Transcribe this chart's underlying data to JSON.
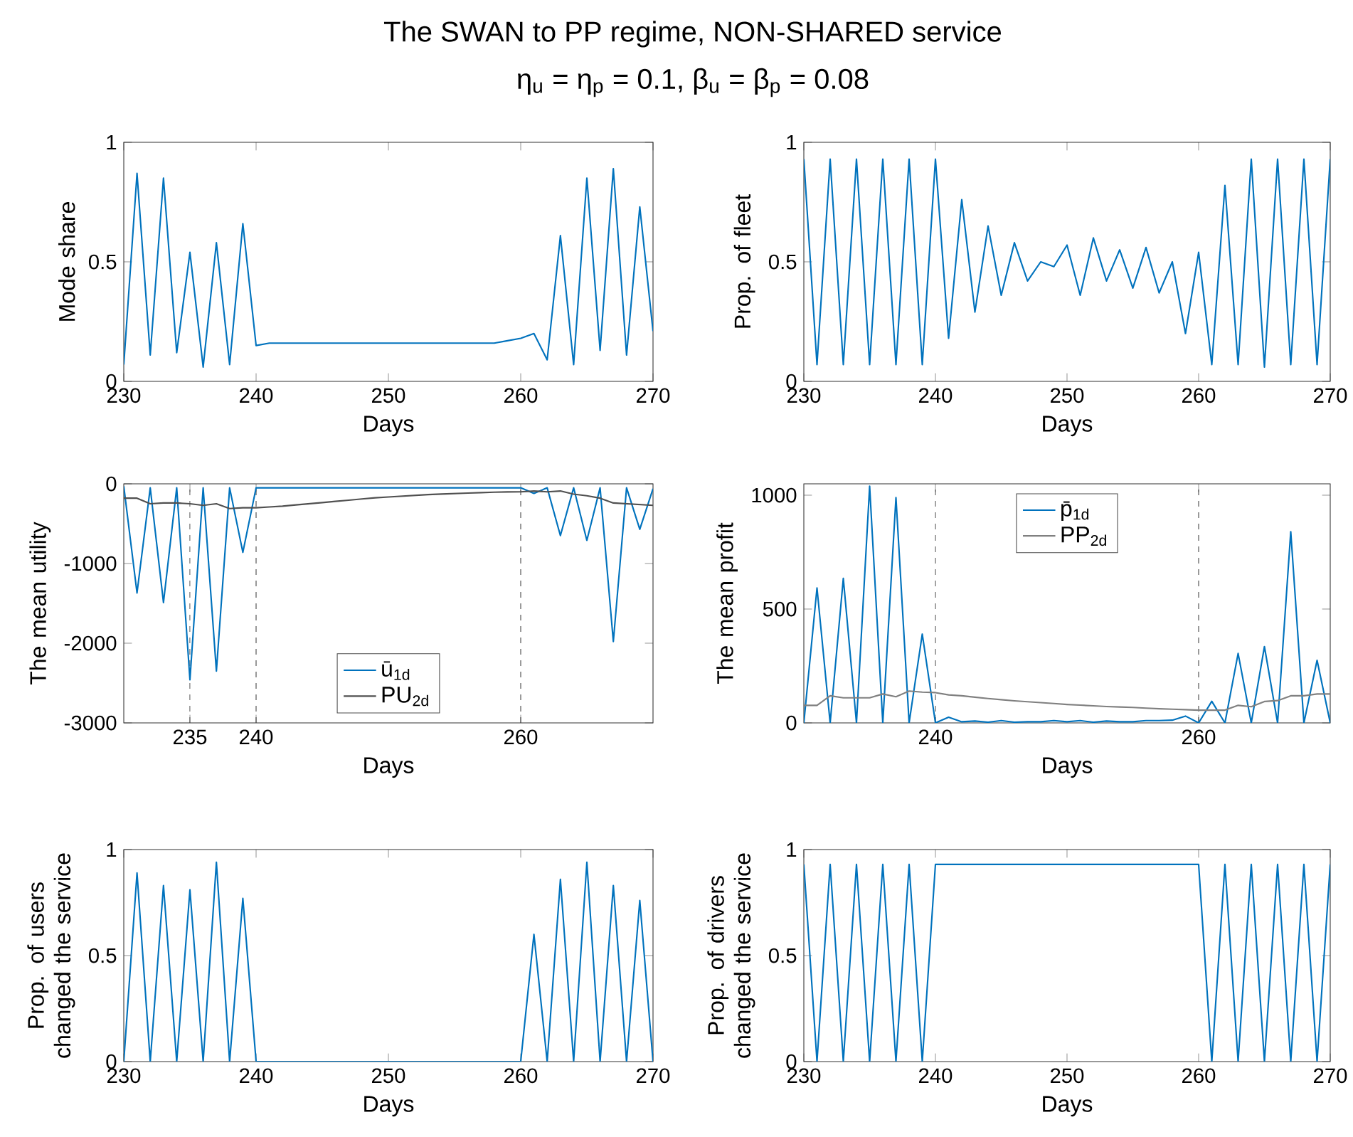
{
  "chart_data": [
    {
      "type": "line",
      "title": "The SWAN to PP regime, NON-SHARED service",
      "subtitle": "η$_{u}$ = η$_{p}$ = 0.1, β$_{u}$ = β$_{p}$ = 0.08",
      "xlabel": "Days",
      "ylabel": "Mode share",
      "xlim": [
        230,
        270
      ],
      "ylim": [
        0,
        1
      ],
      "xticks": [
        230,
        240,
        250,
        260,
        270
      ],
      "yticks": [
        0,
        0.5,
        1
      ],
      "marker": "none",
      "line_style": "solid",
      "x": [
        230,
        231,
        232,
        233,
        234,
        235,
        236,
        237,
        238,
        239,
        240,
        241,
        242,
        243,
        244,
        245,
        246,
        247,
        248,
        249,
        250,
        251,
        252,
        253,
        254,
        255,
        256,
        257,
        258,
        259,
        260,
        261,
        262,
        263,
        264,
        265,
        266,
        267,
        268,
        269,
        270
      ],
      "series": [
        {
          "color": "#0072bd",
          "values": [
            0.07,
            0.87,
            0.11,
            0.85,
            0.12,
            0.54,
            0.06,
            0.58,
            0.07,
            0.66,
            0.15,
            0.16,
            0.16,
            0.16,
            0.16,
            0.16,
            0.16,
            0.16,
            0.16,
            0.16,
            0.16,
            0.16,
            0.16,
            0.16,
            0.16,
            0.16,
            0.16,
            0.16,
            0.16,
            0.17,
            0.18,
            0.2,
            0.09,
            0.61,
            0.07,
            0.85,
            0.13,
            0.89,
            0.11,
            0.73,
            0.21
          ]
        }
      ]
    },
    {
      "type": "line",
      "xlabel": "Days",
      "ylabel": "Prop. of fleet",
      "xlim": [
        230,
        270
      ],
      "ylim": [
        0,
        1
      ],
      "xticks": [
        230,
        240,
        250,
        260,
        270
      ],
      "yticks": [
        0,
        0.5,
        1
      ],
      "marker": "none",
      "line_style": "solid",
      "x": [
        230,
        231,
        232,
        233,
        234,
        235,
        236,
        237,
        238,
        239,
        240,
        241,
        242,
        243,
        244,
        245,
        246,
        247,
        248,
        249,
        250,
        251,
        252,
        253,
        254,
        255,
        256,
        257,
        258,
        259,
        260,
        261,
        262,
        263,
        264,
        265,
        266,
        267,
        268,
        269,
        270
      ],
      "series": [
        {
          "color": "#0072bd",
          "values": [
            0.93,
            0.07,
            0.93,
            0.07,
            0.93,
            0.07,
            0.93,
            0.07,
            0.93,
            0.07,
            0.93,
            0.18,
            0.76,
            0.29,
            0.65,
            0.36,
            0.58,
            0.42,
            0.5,
            0.48,
            0.57,
            0.36,
            0.6,
            0.42,
            0.55,
            0.39,
            0.56,
            0.37,
            0.5,
            0.2,
            0.54,
            0.07,
            0.82,
            0.07,
            0.93,
            0.06,
            0.93,
            0.07,
            0.93,
            0.07,
            0.93
          ]
        }
      ]
    },
    {
      "type": "line",
      "xlabel": "Days",
      "ylabel": "The mean utility",
      "xlim": [
        230,
        270
      ],
      "ylim": [
        -3000,
        0
      ],
      "xticks": [
        235,
        240,
        260
      ],
      "yticks": [
        -3000,
        -2000,
        -1000,
        0
      ],
      "marker": "none",
      "line_style": "solid",
      "legend": "bottom",
      "x": [
        230,
        231,
        232,
        233,
        234,
        235,
        236,
        237,
        238,
        239,
        240,
        241,
        242,
        243,
        244,
        245,
        246,
        247,
        248,
        249,
        250,
        251,
        252,
        253,
        254,
        255,
        256,
        257,
        258,
        259,
        260,
        261,
        262,
        263,
        264,
        265,
        266,
        267,
        268,
        269,
        270
      ],
      "series": [
        {
          "name": "ū$_{1d}$",
          "color": "#0072bd",
          "values": [
            -30,
            -1370,
            -50,
            -1490,
            -50,
            -2460,
            -50,
            -2350,
            -50,
            -860,
            -50,
            -50,
            -50,
            -50,
            -50,
            -50,
            -50,
            -50,
            -50,
            -50,
            -50,
            -50,
            -50,
            -50,
            -50,
            -50,
            -50,
            -50,
            -50,
            -50,
            -50,
            -120,
            -50,
            -650,
            -50,
            -710,
            -50,
            -1980,
            -50,
            -570,
            -60
          ]
        },
        {
          "name": "PU$_{2d}$",
          "color": "#505050",
          "values": [
            -180,
            -180,
            -250,
            -240,
            -240,
            -250,
            -270,
            -250,
            -310,
            -300,
            -300,
            -290,
            -280,
            -265,
            -250,
            -235,
            -220,
            -205,
            -190,
            -175,
            -165,
            -155,
            -145,
            -135,
            -128,
            -122,
            -116,
            -110,
            -105,
            -102,
            -100,
            -90,
            -100,
            -90,
            -130,
            -150,
            -180,
            -240,
            -250,
            -260,
            -270
          ]
        }
      ],
      "ref_lines": [
        {
          "axis": "x",
          "value": 235,
          "color": "#404040",
          "line_style": "dashed"
        },
        {
          "axis": "x",
          "value": 240,
          "color": "#404040",
          "line_style": "dashed"
        },
        {
          "axis": "x",
          "value": 260,
          "color": "#404040",
          "line_style": "dashed"
        }
      ]
    },
    {
      "type": "line",
      "xlabel": "Days",
      "ylabel": "The mean profit",
      "xlim": [
        230,
        270
      ],
      "ylim": [
        0,
        1050
      ],
      "xticks": [
        240,
        260
      ],
      "yticks": [
        0,
        500,
        1000
      ],
      "marker": "none",
      "line_style": "solid",
      "legend": "top",
      "x": [
        230,
        231,
        232,
        233,
        234,
        235,
        236,
        237,
        238,
        239,
        240,
        241,
        242,
        243,
        244,
        245,
        246,
        247,
        248,
        249,
        250,
        251,
        252,
        253,
        254,
        255,
        256,
        257,
        258,
        259,
        260,
        261,
        262,
        263,
        264,
        265,
        266,
        267,
        268,
        269,
        270
      ],
      "series": [
        {
          "name": "p̄$_{1d}$",
          "color": "#0072bd",
          "values": [
            0,
            593,
            0,
            635,
            0,
            1040,
            0,
            990,
            0,
            390,
            0,
            25,
            5,
            8,
            3,
            10,
            3,
            5,
            5,
            10,
            5,
            10,
            3,
            8,
            5,
            5,
            10,
            10,
            12,
            30,
            0,
            95,
            0,
            305,
            0,
            335,
            0,
            840,
            0,
            275,
            0
          ]
        },
        {
          "name": "PP$_{2d}$",
          "color": "#808080",
          "values": [
            77,
            77,
            119,
            110,
            110,
            110,
            127,
            115,
            140,
            135,
            133,
            123,
            119,
            113,
            107,
            102,
            97,
            93,
            89,
            85,
            81,
            78,
            75,
            72,
            70,
            68,
            65,
            62,
            60,
            58,
            56,
            56,
            56,
            77,
            71,
            94,
            98,
            119,
            119,
            127,
            127
          ]
        }
      ],
      "ref_lines": [
        {
          "axis": "x",
          "value": 240,
          "color": "#404040",
          "line_style": "dashed"
        },
        {
          "axis": "x",
          "value": 260,
          "color": "#404040",
          "line_style": "dashed"
        }
      ]
    },
    {
      "type": "line",
      "xlabel": "Days",
      "ylabel": "Prop. of users changed the service",
      "xlim": [
        230,
        270
      ],
      "ylim": [
        0,
        1
      ],
      "xticks": [
        230,
        240,
        250,
        260,
        270
      ],
      "yticks": [
        0,
        0.5,
        1
      ],
      "marker": "none",
      "line_style": "solid",
      "x": [
        230,
        231,
        232,
        233,
        234,
        235,
        236,
        237,
        238,
        239,
        240,
        241,
        242,
        243,
        244,
        245,
        246,
        247,
        248,
        249,
        250,
        251,
        252,
        253,
        254,
        255,
        256,
        257,
        258,
        259,
        260,
        261,
        262,
        263,
        264,
        265,
        266,
        267,
        268,
        269,
        270
      ],
      "series": [
        {
          "color": "#0072bd",
          "values": [
            0,
            0.89,
            0,
            0.83,
            0,
            0.81,
            0,
            0.94,
            0,
            0.77,
            0,
            0,
            0,
            0,
            0,
            0,
            0,
            0,
            0,
            0,
            0,
            0,
            0,
            0,
            0,
            0,
            0,
            0,
            0,
            0,
            0,
            0.6,
            0,
            0.86,
            0,
            0.94,
            0,
            0.83,
            0,
            0.76,
            0
          ]
        }
      ]
    },
    {
      "type": "line",
      "xlabel": "Days",
      "ylabel": "Prop. of drivers changed the service",
      "xlim": [
        230,
        270
      ],
      "ylim": [
        0,
        1
      ],
      "xticks": [
        230,
        240,
        250,
        260,
        270
      ],
      "yticks": [
        0,
        0.5,
        1
      ],
      "marker": "none",
      "line_style": "solid",
      "x": [
        230,
        231,
        232,
        233,
        234,
        235,
        236,
        237,
        238,
        239,
        240,
        241,
        242,
        243,
        244,
        245,
        246,
        247,
        248,
        249,
        250,
        251,
        252,
        253,
        254,
        255,
        256,
        257,
        258,
        259,
        260,
        261,
        262,
        263,
        264,
        265,
        266,
        267,
        268,
        269,
        270
      ],
      "series": [
        {
          "color": "#0072bd",
          "values": [
            0.93,
            0,
            0.93,
            0,
            0.93,
            0,
            0.93,
            0,
            0.93,
            0,
            0.93,
            0.93,
            0.93,
            0.93,
            0.93,
            0.93,
            0.93,
            0.93,
            0.93,
            0.93,
            0.93,
            0.93,
            0.93,
            0.93,
            0.93,
            0.93,
            0.93,
            0.93,
            0.93,
            0.93,
            0.93,
            0,
            0.93,
            0,
            0.93,
            0,
            0.93,
            0,
            0.93,
            0,
            0.93
          ]
        }
      ]
    }
  ]
}
